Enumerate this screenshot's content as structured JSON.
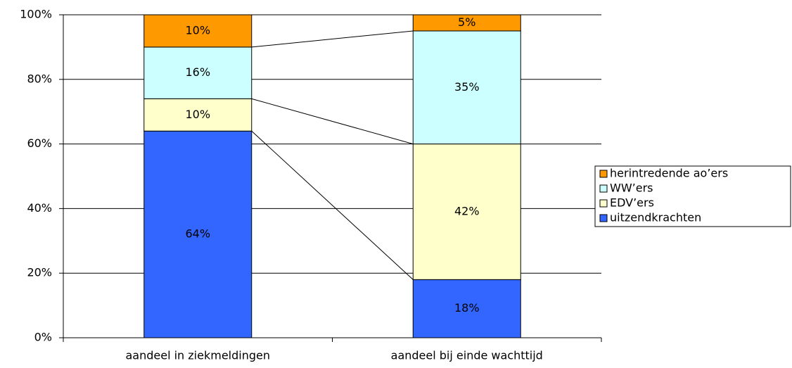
{
  "chart_data": {
    "type": "stacked_bar",
    "categories": [
      "aandeel in ziekmeldingen",
      "aandeel bij einde wachttijd"
    ],
    "series": [
      {
        "name": "uitzendkrachten",
        "color": "#3366ff",
        "values": [
          64,
          18
        ],
        "value_labels": [
          "64%",
          "18%"
        ]
      },
      {
        "name": "EDV’ers",
        "color": "#ffffcc",
        "values": [
          10,
          42
        ],
        "value_labels": [
          "10%",
          "42%"
        ]
      },
      {
        "name": "WW’ers",
        "color": "#ccffff",
        "values": [
          16,
          35
        ],
        "value_labels": [
          "16%",
          "35%"
        ]
      },
      {
        "name": "herintredende ao’ers",
        "color": "#ff9900",
        "values": [
          10,
          5
        ],
        "value_labels": [
          "10%",
          "5%"
        ]
      }
    ],
    "ylim": [
      0,
      100
    ],
    "yticks": [
      {
        "value": 0,
        "label": "0%"
      },
      {
        "value": 20,
        "label": "20%"
      },
      {
        "value": 40,
        "label": "40%"
      },
      {
        "value": 60,
        "label": "60%"
      },
      {
        "value": 80,
        "label": "80%"
      },
      {
        "value": 100,
        "label": "100%"
      }
    ],
    "grid": true,
    "legend": "right",
    "series_lines": true
  }
}
